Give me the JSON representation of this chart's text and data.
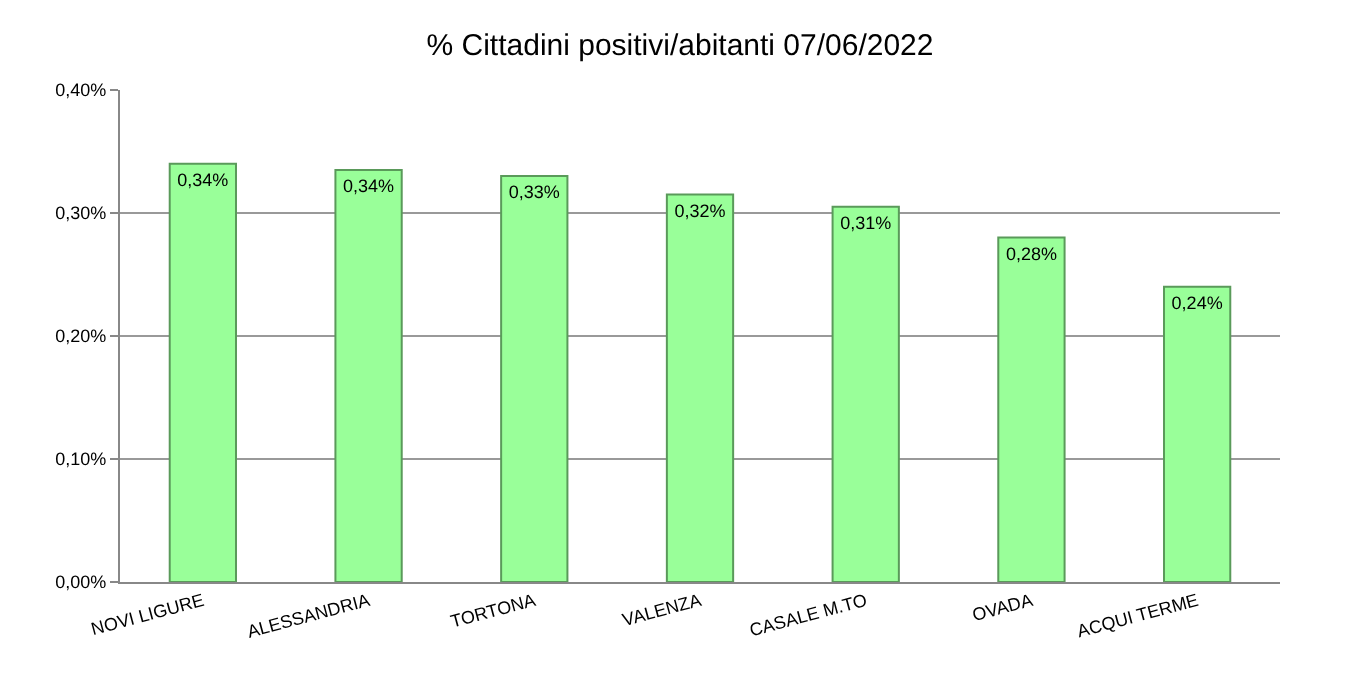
{
  "chart_data": {
    "type": "bar",
    "title": "% Cittadini positivi/abitanti 07/06/2022",
    "categories": [
      "NOVI LIGURE",
      "ALESSANDRIA",
      "TORTONA",
      "VALENZA",
      "CASALE M.TO",
      "OVADA",
      "ACQUI TERME"
    ],
    "values": [
      0.34,
      0.335,
      0.33,
      0.315,
      0.305,
      0.28,
      0.24
    ],
    "value_labels": [
      "0,34%",
      "0,34%",
      "0,33%",
      "0,32%",
      "0,31%",
      "0,28%",
      "0,24%"
    ],
    "color": "#99ff99",
    "ylim": [
      0,
      0.4
    ],
    "yticks": [
      {
        "value": 0,
        "label": "0,00%"
      },
      {
        "value": 0.1,
        "label": "0,10%"
      },
      {
        "value": 0.2,
        "label": "0,20%"
      },
      {
        "value": 0.3,
        "label": "0,30%"
      },
      {
        "value": 0.4,
        "label": "0,40%"
      }
    ],
    "grid": "y"
  }
}
